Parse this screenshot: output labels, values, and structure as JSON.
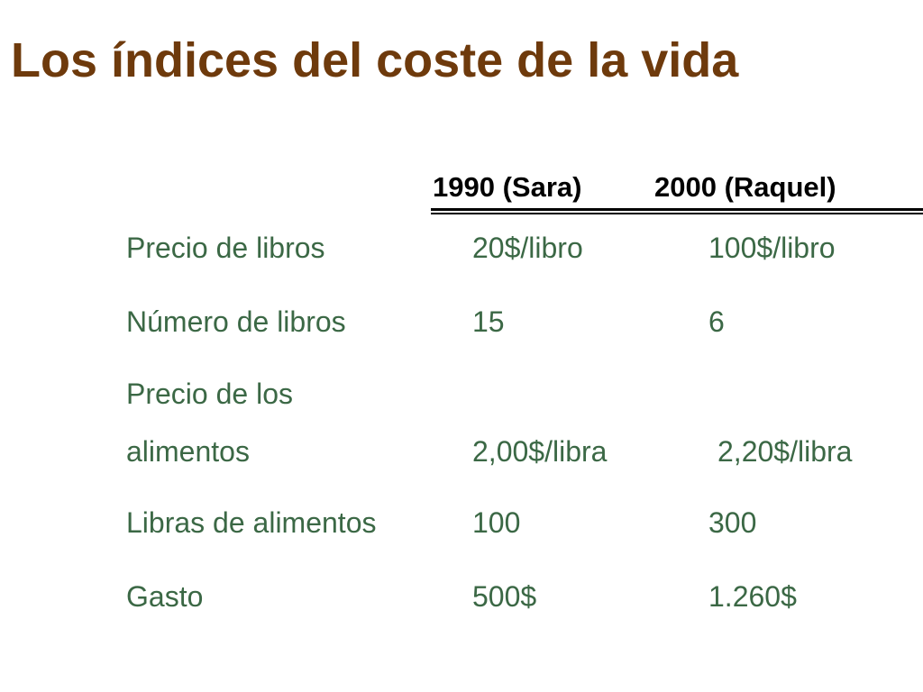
{
  "header": {
    "title": "Los índices del coste de la vida"
  },
  "table": {
    "columns": [
      "1990 (Sara)",
      "2000 (Raquel)"
    ],
    "rows": [
      [
        "Precio de libros",
        "20$/libro",
        "100$/libro"
      ],
      [
        "Número de libros",
        "15",
        "6"
      ],
      [
        "Precio de los alimentos",
        "2,00$/libra",
        "2,20$/libra"
      ],
      [
        "Libras de alimentos",
        "100",
        "300"
      ],
      [
        "Gasto",
        "500$",
        "1.260$"
      ]
    ]
  }
}
